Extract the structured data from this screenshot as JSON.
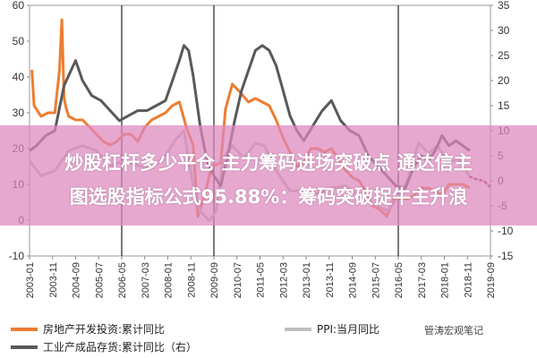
{
  "banner": {
    "line1": "炒股杠杆多少平仓 主力筹码进场突破点 通达信主",
    "line2": "图选股指标公式95.88%：筹码突破捉牛主升浪"
  },
  "watermark": "管涛宏观笔记",
  "chart_data": {
    "type": "line",
    "x_ticks": [
      "2003-01",
      "2003-11",
      "2004-09",
      "2005-07",
      "2006-05",
      "2007-03",
      "2008-01",
      "2008-11",
      "2009-09",
      "2010-07",
      "2011-05",
      "2012-03",
      "2013-01",
      "2013-11",
      "2014-09",
      "2015-07",
      "2016-05",
      "2017-03",
      "2018-01",
      "2018-11",
      "2019-09"
    ],
    "left_axis": {
      "ylim": [
        -10,
        60
      ],
      "ticks": [
        -10,
        0,
        10,
        20,
        30,
        40,
        50,
        60
      ]
    },
    "right_axis": {
      "ylim": [
        -15,
        35
      ],
      "ticks": [
        -15,
        -10,
        -5,
        0,
        5,
        10,
        15,
        20,
        25,
        30,
        35
      ]
    },
    "vlines": [
      "2006-05",
      "2009-09",
      "2016-05"
    ],
    "series": [
      {
        "name": "房地产开发投资:累计同比",
        "axis": "left",
        "color": "#ed7d31",
        "style": "solid",
        "x": [
          "2003-02",
          "2003-03",
          "2003-06",
          "2003-09",
          "2003-12",
          "2004-02",
          "2004-03",
          "2004-04",
          "2004-05",
          "2004-06",
          "2004-09",
          "2004-12",
          "2005-03",
          "2005-06",
          "2005-09",
          "2005-12",
          "2006-03",
          "2006-06",
          "2006-09",
          "2006-12",
          "2007-03",
          "2007-06",
          "2007-09",
          "2007-12",
          "2008-03",
          "2008-06",
          "2008-09",
          "2008-12",
          "2009-02",
          "2009-05",
          "2009-08",
          "2009-12",
          "2010-02",
          "2010-05",
          "2010-08",
          "2010-12",
          "2011-03",
          "2011-06",
          "2011-09",
          "2011-12",
          "2012-03",
          "2012-06",
          "2012-09",
          "2012-12",
          "2013-03",
          "2013-06",
          "2013-09",
          "2013-12",
          "2014-03",
          "2014-06",
          "2014-09",
          "2014-12",
          "2015-03",
          "2015-06",
          "2015-09",
          "2015-12",
          "2016-03",
          "2016-06",
          "2016-09",
          "2016-12",
          "2017-03",
          "2017-06",
          "2017-09",
          "2017-12",
          "2018-03",
          "2018-06",
          "2018-09",
          "2018-12"
        ],
        "values": [
          42,
          32,
          29,
          30,
          30,
          42,
          56,
          34,
          31,
          29,
          28,
          28,
          26,
          24,
          22,
          21,
          22,
          24,
          24,
          22,
          26,
          28,
          29,
          30,
          32,
          33,
          26,
          21,
          1,
          7,
          15,
          16,
          31,
          38,
          36,
          33,
          34,
          33,
          32,
          28,
          23,
          19,
          15,
          16,
          20,
          20,
          19,
          20,
          17,
          14,
          12,
          11,
          8,
          4,
          3,
          1,
          6,
          6,
          6,
          7,
          9,
          9,
          8,
          7,
          10,
          10,
          10,
          9
        ]
      },
      {
        "name": "PPI:当月同比",
        "axis": "right",
        "color": "#bfbfbf",
        "style": "solid",
        "x": [
          "2003-01",
          "2003-06",
          "2003-12",
          "2004-06",
          "2004-12",
          "2005-06",
          "2005-12",
          "2006-06",
          "2006-12",
          "2007-06",
          "2007-12",
          "2008-04",
          "2008-08",
          "2008-12",
          "2009-03",
          "2009-07",
          "2009-10",
          "2010-01",
          "2010-05",
          "2010-10",
          "2011-03",
          "2011-07",
          "2011-12",
          "2012-06",
          "2012-12",
          "2013-06",
          "2013-12",
          "2014-06",
          "2014-12",
          "2015-06",
          "2015-12",
          "2016-03",
          "2016-06",
          "2016-09",
          "2016-12",
          "2017-02",
          "2017-06",
          "2017-10",
          "2018-03",
          "2018-07",
          "2018-12",
          "2019-03",
          "2019-06",
          "2019-09"
        ],
        "values": [
          4,
          1,
          2,
          6,
          7,
          6,
          3,
          4,
          3,
          2.5,
          5,
          8,
          10,
          -1,
          -6,
          -8,
          -6,
          4.5,
          7,
          4.5,
          7.5,
          7,
          2,
          -2,
          -2,
          -2.5,
          -1.5,
          -1,
          -3,
          -4.5,
          -6,
          -4.5,
          -2.5,
          0,
          5,
          7.5,
          5.5,
          7,
          3.5,
          4.5,
          0.8,
          0.3,
          0,
          -1.2
        ]
      },
      {
        "name": "PPI:当月同比",
        "axis": "right",
        "color": "#c00000",
        "style": "dotted",
        "x": [
          "2018-12",
          "2019-03",
          "2019-06",
          "2019-09"
        ],
        "values": [
          0.8,
          0.3,
          0.0,
          -1.2
        ]
      },
      {
        "name": "工业产成品存货:累计同比（右）",
        "axis": "right",
        "color": "#595959",
        "style": "solid",
        "x": [
          "2003-01",
          "2003-04",
          "2003-08",
          "2003-12",
          "2004-04",
          "2004-07",
          "2004-09",
          "2004-12",
          "2005-04",
          "2005-08",
          "2005-12",
          "2006-04",
          "2006-08",
          "2006-12",
          "2007-04",
          "2007-08",
          "2007-12",
          "2008-03",
          "2008-06",
          "2008-08",
          "2008-10",
          "2008-12",
          "2009-03",
          "2009-06",
          "2009-09",
          "2009-12",
          "2010-03",
          "2010-06",
          "2010-09",
          "2010-12",
          "2011-03",
          "2011-06",
          "2011-09",
          "2011-12",
          "2012-03",
          "2012-06",
          "2012-09",
          "2012-12",
          "2013-04",
          "2013-08",
          "2013-12",
          "2014-04",
          "2014-08",
          "2014-12",
          "2015-04",
          "2015-08",
          "2015-12",
          "2016-04",
          "2016-08",
          "2016-12",
          "2017-03",
          "2017-06",
          "2017-09",
          "2017-12",
          "2018-03",
          "2018-06",
          "2018-09",
          "2018-12"
        ],
        "values": [
          6,
          7,
          9,
          10,
          19,
          22,
          24,
          20,
          17,
          16,
          14,
          12,
          13,
          14,
          14,
          15,
          16,
          20,
          24,
          27,
          26,
          21,
          11,
          4,
          1,
          -1,
          5,
          12,
          18,
          22,
          26,
          27,
          26,
          23,
          18,
          13,
          10,
          8,
          11,
          14,
          16,
          12,
          10,
          9,
          5,
          3,
          1,
          -1,
          -1.5,
          3,
          5,
          4,
          6,
          9,
          7,
          8,
          7,
          6
        ]
      }
    ],
    "legend": [
      {
        "label": "房地产开发投资:累计同比",
        "color": "#ed7d31"
      },
      {
        "label": "PPI:当月同比",
        "color": "#bfbfbf"
      },
      {
        "label": "工业产成品存货:累计同比（右）",
        "color": "#595959"
      }
    ]
  }
}
